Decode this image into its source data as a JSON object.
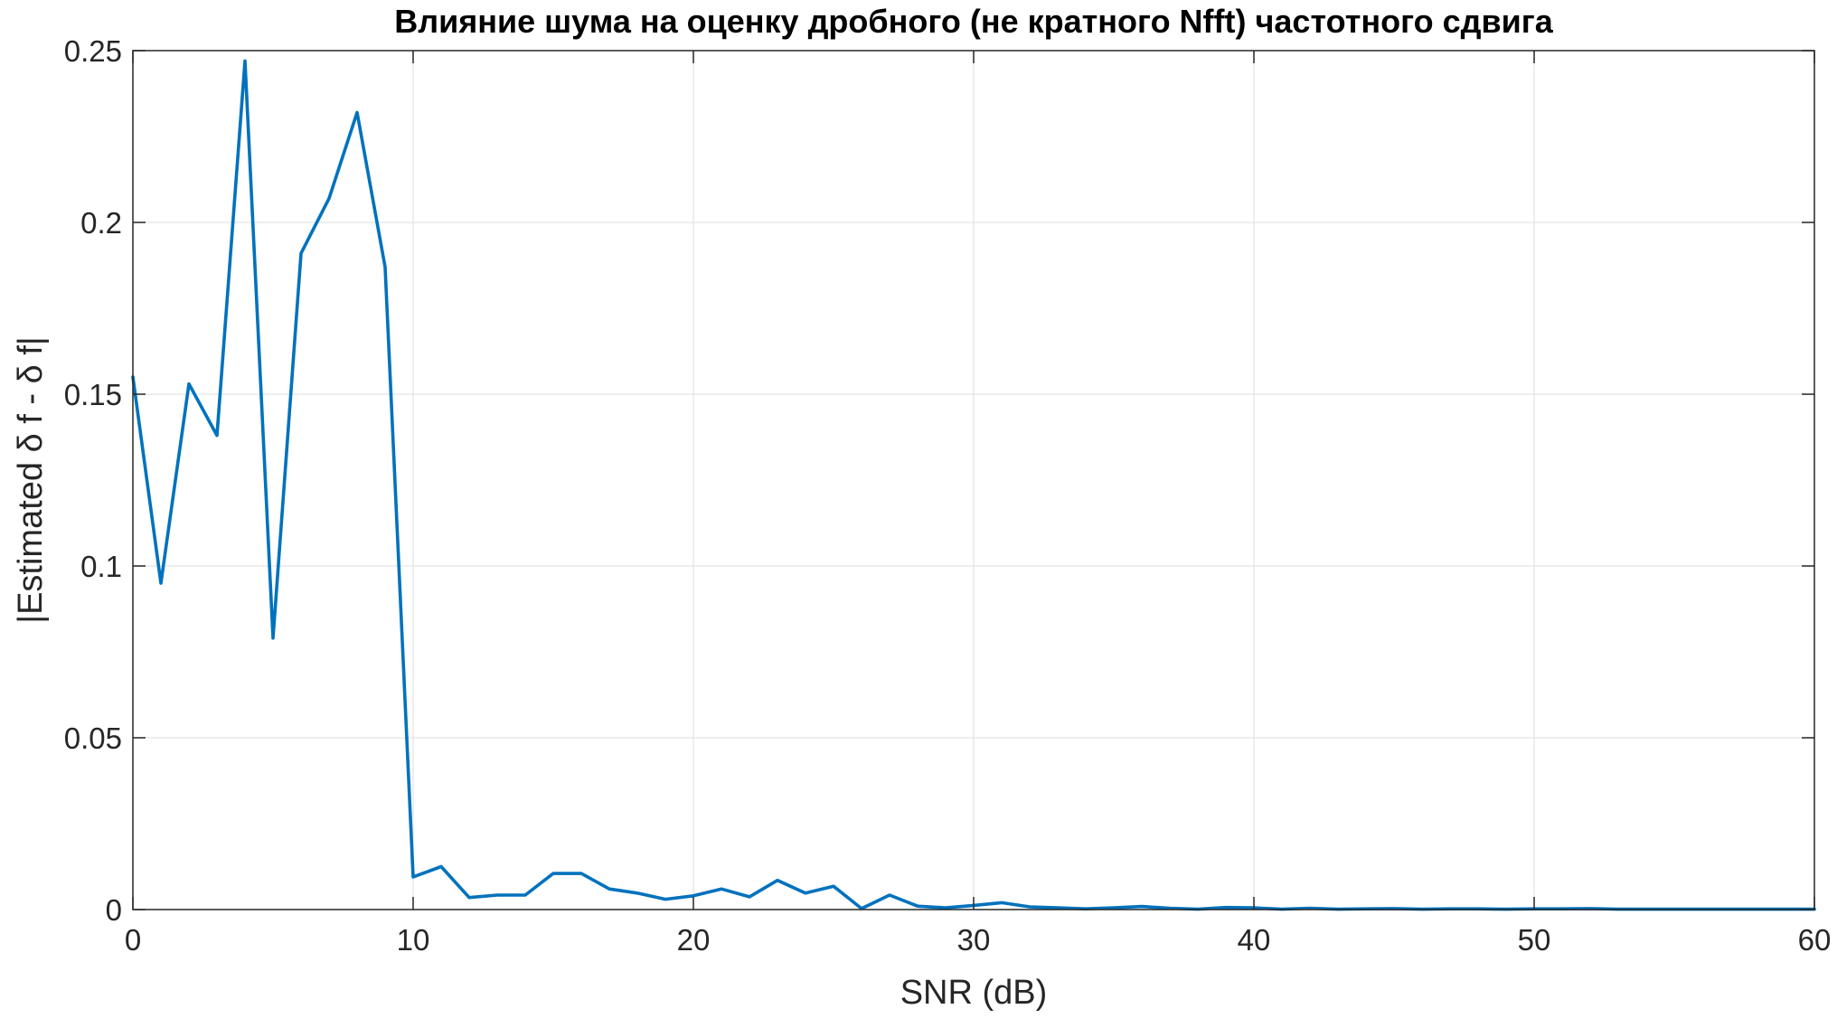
{
  "chart_data": {
    "type": "line",
    "title": "Влияние шума на оценку дробного (не кратного Nfft) частотного сдвига",
    "xlabel": "SNR (dB)",
    "ylabel": "|Estimated δ f - δ f|",
    "xlim": [
      0,
      60
    ],
    "ylim": [
      0,
      0.25
    ],
    "grid": true,
    "x_ticks": [
      0,
      10,
      20,
      30,
      40,
      50,
      60
    ],
    "x_tick_labels": [
      "0",
      "10",
      "20",
      "30",
      "40",
      "50",
      "60"
    ],
    "y_ticks": [
      0,
      0.05,
      0.1,
      0.15,
      0.2,
      0.25
    ],
    "y_tick_labels": [
      "0",
      "0.05",
      "0.1",
      "0.15",
      "0.2",
      "0.25"
    ],
    "line_color": "#0072BD",
    "series": [
      {
        "x": [
          0,
          1,
          2,
          3,
          4,
          5,
          6,
          7,
          8,
          9,
          10,
          11,
          12,
          13,
          14,
          15,
          16,
          17,
          18,
          19,
          20,
          21,
          22,
          23,
          24,
          25,
          26,
          27,
          28,
          29,
          30,
          31,
          32,
          33,
          34,
          35,
          36,
          37,
          38,
          39,
          40,
          41,
          42,
          43,
          44,
          45,
          46,
          47,
          48,
          49,
          50,
          51,
          52,
          53,
          54,
          55,
          56,
          57,
          58,
          59,
          60
        ],
        "y": [
          0.155,
          0.095,
          0.153,
          0.138,
          0.247,
          0.079,
          0.191,
          0.207,
          0.232,
          0.187,
          0.0095,
          0.0125,
          0.0035,
          0.0042,
          0.0042,
          0.0105,
          0.0105,
          0.006,
          0.0048,
          0.003,
          0.004,
          0.006,
          0.0037,
          0.0085,
          0.0048,
          0.0068,
          0.0003,
          0.0042,
          0.001,
          0.0005,
          0.0012,
          0.002,
          0.0008,
          0.0005,
          0.0002,
          0.0005,
          0.0009,
          0.0004,
          0.0001,
          0.0006,
          0.0005,
          0.0001,
          0.0004,
          0.0001,
          0.0002,
          0.0003,
          0.0001,
          0.0002,
          0.0002,
          0.0001,
          0.0002,
          0.0002,
          0.0003,
          0.0001,
          0.0001,
          0.0001,
          0.0001,
          0.0001,
          0.0001,
          0.0001,
          0.0001
        ]
      }
    ]
  }
}
